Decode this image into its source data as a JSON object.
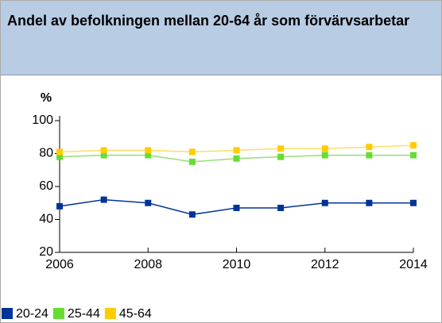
{
  "header": {
    "title": "Andel av befolkningen mellan 20-64 år som förvärvsarbetar"
  },
  "chart_data": {
    "type": "line",
    "y_label": "%",
    "x": [
      2006,
      2007,
      2008,
      2009,
      2010,
      2011,
      2012,
      2013,
      2014
    ],
    "xlim": [
      2006,
      2014
    ],
    "xticks": [
      2006,
      2008,
      2010,
      2012,
      2014
    ],
    "ylim": [
      20,
      100
    ],
    "yticks": [
      20,
      40,
      60,
      80,
      100
    ],
    "series": [
      {
        "name": "20-24",
        "color": "#003399",
        "values": [
          48,
          52,
          50,
          43,
          47,
          47,
          50,
          50,
          50
        ]
      },
      {
        "name": "25-44",
        "color": "#66dd33",
        "values": [
          78,
          79,
          79,
          75,
          77,
          78,
          79,
          79,
          79
        ]
      },
      {
        "name": "45-64",
        "color": "#ffcc00",
        "values": [
          81,
          82,
          82,
          81,
          82,
          83,
          83,
          84,
          85
        ]
      }
    ]
  }
}
